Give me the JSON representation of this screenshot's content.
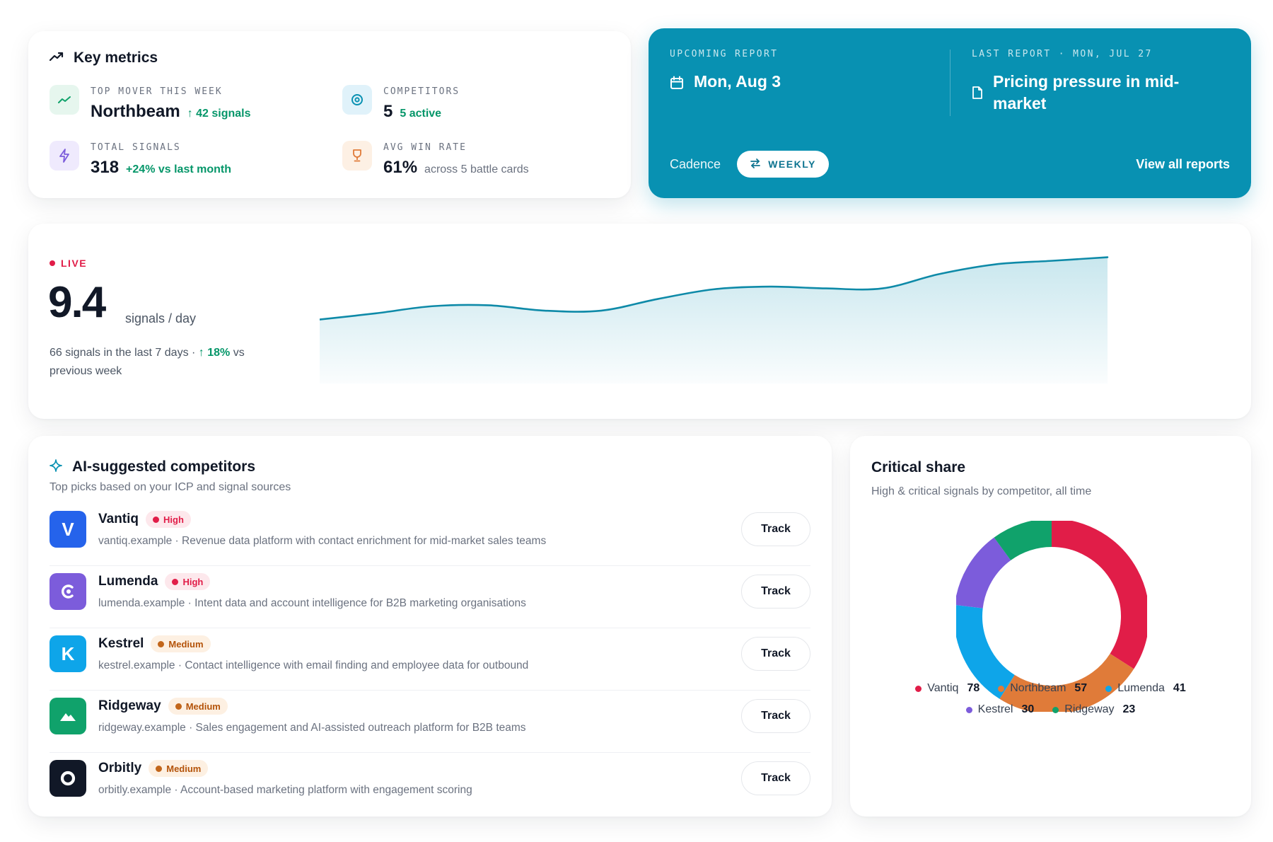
{
  "colors": {
    "accent": "#0891b2",
    "positive": "#059669",
    "live": "#e11d48",
    "vantiq": "#e11d48",
    "northbeam": "#e07b39",
    "lumenda": "#0ea5e9",
    "kestrel": "#7c5cdb",
    "ridgeway": "#10a26b"
  },
  "key_metrics": {
    "title": "Key metrics",
    "icon": "trending-up-icon",
    "top_mover": {
      "label": "TOP MOVER THIS WEEK",
      "value": "Northbeam",
      "delta": "↑ 42 signals",
      "icon": "trend-icon"
    },
    "competitors": {
      "label": "COMPETITORS",
      "value": "5",
      "delta": "5 active",
      "icon": "target-icon"
    },
    "total_signals": {
      "label": "TOTAL SIGNALS",
      "value": "318",
      "delta": "+24% vs last month",
      "icon": "bolt-icon"
    },
    "win_rate": {
      "label": "AVG WIN RATE",
      "value": "61%",
      "sub": "across 5 battle cards",
      "icon": "trophy-icon"
    }
  },
  "report": {
    "upcoming_label": "UPCOMING REPORT",
    "upcoming_date": "Mon, Aug 3",
    "last_label": "LAST REPORT · MON, JUL 27",
    "last_title": "Pricing pressure in mid-market",
    "cadence_label": "Cadence",
    "cadence_value": "WEEKLY",
    "view_all": "View all reports"
  },
  "live": {
    "badge": "LIVE",
    "value": "9.4",
    "unit": "signals / day",
    "desc_prefix": "66 signals in the last 7 days ·",
    "desc_delta": "↑ 18%",
    "desc_suffix": "vs previous week"
  },
  "chart_data": {
    "type": "area",
    "title": "",
    "xlabel": "",
    "ylabel": "",
    "x": [
      1,
      2,
      3,
      4,
      5,
      6,
      7,
      8,
      9,
      10,
      11,
      12,
      13,
      14,
      15
    ],
    "values": [
      5.6,
      6.3,
      7.1,
      7.2,
      6.6,
      6.6,
      7.9,
      9.0,
      9.3,
      9.1,
      9.1,
      10.7,
      11.8,
      12.2,
      12.6
    ],
    "ylim": [
      0,
      14
    ],
    "grid": false
  },
  "ai": {
    "title": "AI-suggested competitors",
    "subtitle": "Top picks based on your ICP and signal sources",
    "track_label": "Track",
    "items": [
      {
        "name": "Vantiq",
        "priority": "High",
        "level": "high",
        "logo_letter": "V",
        "logo_color": "#2563eb",
        "logo_icon": "v-letter-logo",
        "desc": "vantiq.example · Revenue data platform with contact enrichment for mid-market sales teams"
      },
      {
        "name": "Lumenda",
        "priority": "High",
        "level": "high",
        "logo_letter": "",
        "logo_color": "#7c5cdb",
        "logo_icon": "crescent-logo",
        "desc": "lumenda.example · Intent data and account intelligence for B2B marketing organisations"
      },
      {
        "name": "Kestrel",
        "priority": "Medium",
        "level": "medium",
        "logo_letter": "K",
        "logo_color": "#0ea5e9",
        "logo_icon": "k-letter-logo",
        "desc": "kestrel.example · Contact intelligence with email finding and employee data for outbound"
      },
      {
        "name": "Ridgeway",
        "priority": "Medium",
        "level": "medium",
        "logo_letter": "",
        "logo_color": "#10a26b",
        "logo_icon": "mountain-logo",
        "desc": "ridgeway.example · Sales engagement and AI-assisted outreach platform for B2B teams"
      },
      {
        "name": "Orbitly",
        "priority": "Medium",
        "level": "medium",
        "logo_letter": "",
        "logo_color": "#111827",
        "logo_icon": "ring-logo",
        "desc": "orbitly.example · Account-based marketing platform with engagement scoring"
      }
    ]
  },
  "share": {
    "title": "Critical share",
    "subtitle": "High & critical signals by competitor, all time",
    "slices": [
      {
        "name": "Vantiq",
        "value": 78,
        "color": "#e11d48"
      },
      {
        "name": "Northbeam",
        "value": 57,
        "color": "#e07b39"
      },
      {
        "name": "Lumenda",
        "value": 41,
        "color": "#0ea5e9"
      },
      {
        "name": "Kestrel",
        "value": 30,
        "color": "#7c5cdb"
      },
      {
        "name": "Ridgeway",
        "value": 23,
        "color": "#10a26b"
      }
    ]
  }
}
